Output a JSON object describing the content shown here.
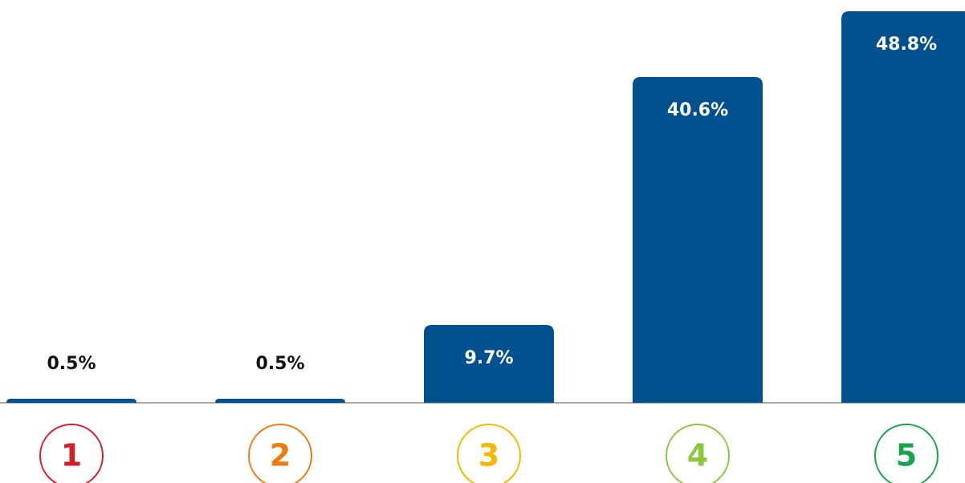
{
  "chart_data": {
    "type": "bar",
    "categories": [
      "1",
      "2",
      "3",
      "4",
      "5"
    ],
    "category_colors": [
      "#d0202e",
      "#f07a10",
      "#f5b800",
      "#8dc63f",
      "#1aa34a"
    ],
    "values": [
      0.5,
      0.5,
      9.7,
      40.6,
      48.8
    ],
    "value_labels": [
      "0.5%",
      "0.5%",
      "9.7%",
      "40.6%",
      "48.8%"
    ],
    "color": "#00508e"
  }
}
